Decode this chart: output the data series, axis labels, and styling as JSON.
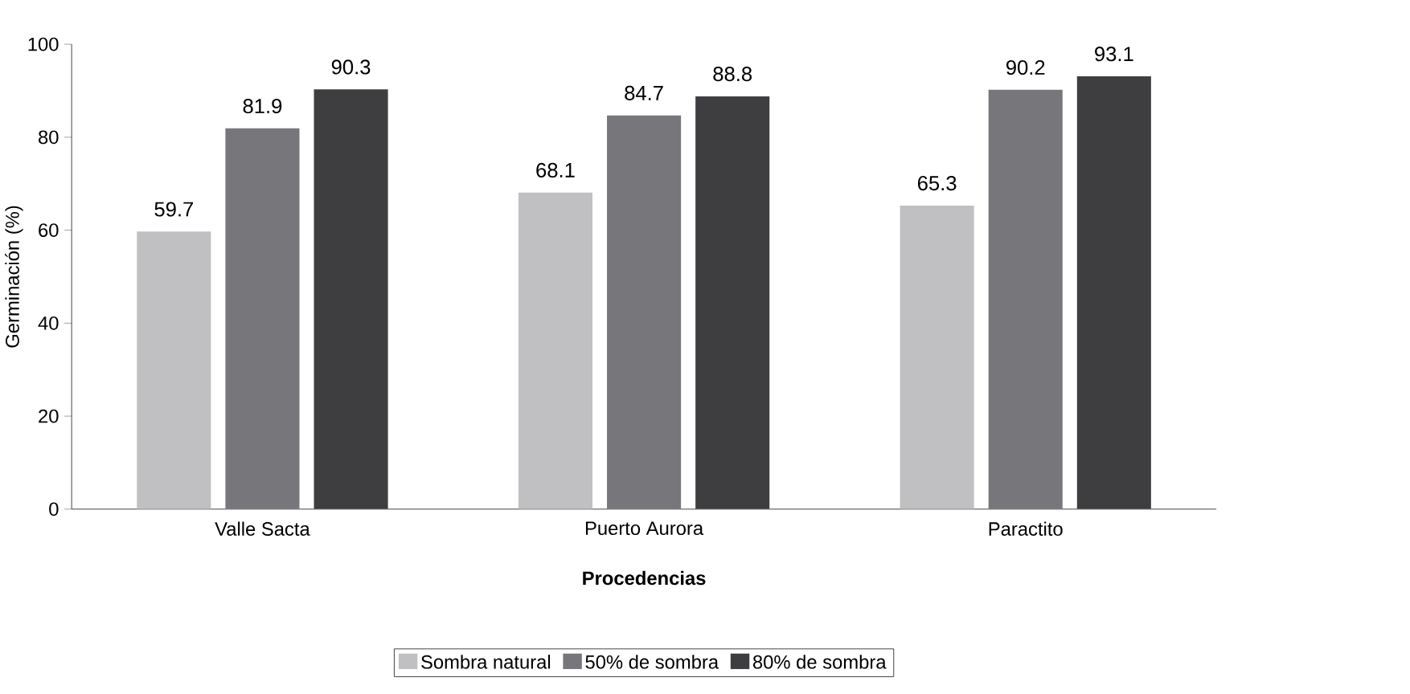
{
  "chart_data": {
    "type": "bar",
    "xlabel": "Procedencias",
    "ylabel": "Germinación (%)",
    "categories": [
      "Valle Sacta",
      "Puerto Aurora",
      "Paractito"
    ],
    "series": [
      {
        "name": "Sombra natural",
        "color": "#c0c0c2",
        "values": [
          59.7,
          68.1,
          65.3
        ]
      },
      {
        "name": "50% de sombra",
        "color": "#77777b",
        "values": [
          81.9,
          84.7,
          90.2
        ]
      },
      {
        "name": "80% de sombra",
        "color": "#3e3d40",
        "values": [
          90.3,
          88.8,
          93.1
        ]
      }
    ],
    "ylim": [
      0,
      100
    ],
    "yticks": [
      0,
      20,
      40,
      60,
      80,
      100
    ],
    "data_labels": true,
    "grid": false,
    "legend": "bottom"
  }
}
